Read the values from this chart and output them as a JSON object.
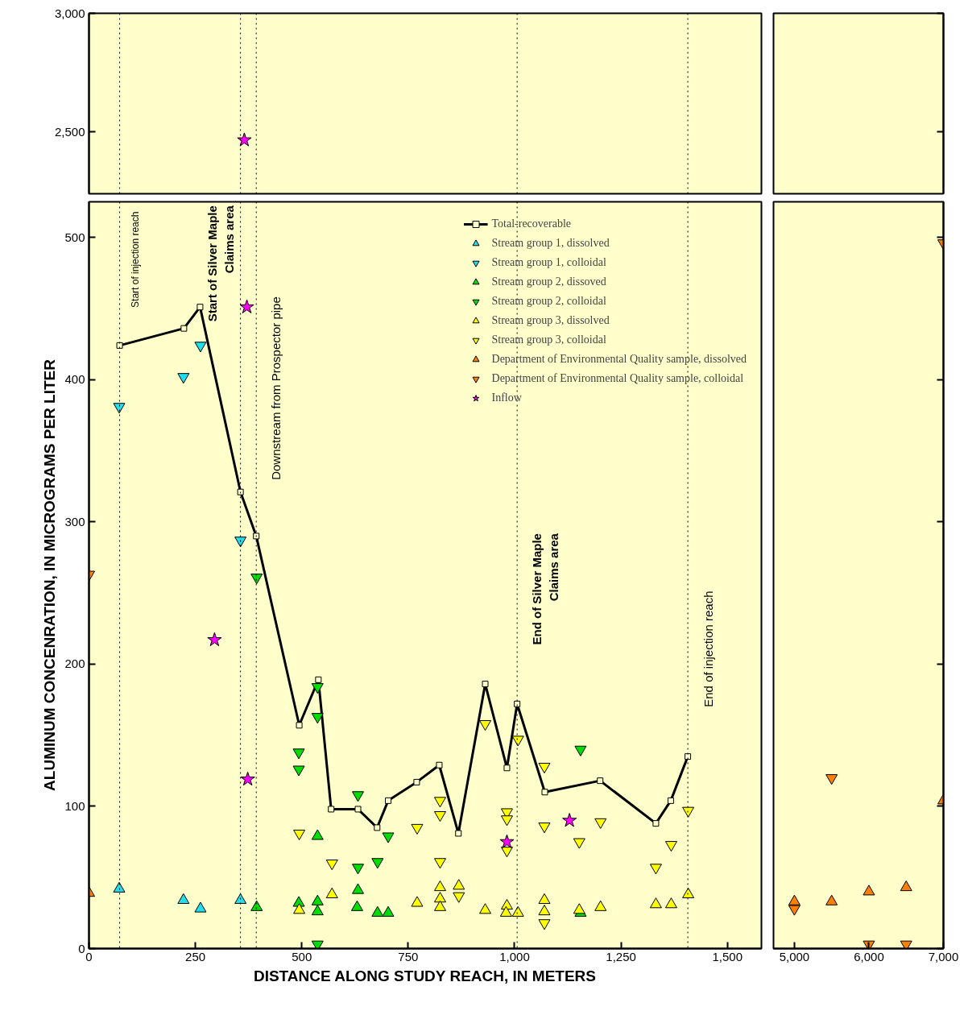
{
  "chart_data": [
    {
      "type": "scatter",
      "xlim": [
        0,
        1580
      ],
      "ylim": [
        2240,
        3000
      ],
      "yticks": [
        {
          "value": 2500,
          "label": "2,500"
        },
        {
          "value": 3000,
          "label": "3,000"
        }
      ],
      "tick_labels": "y",
      "ref_lines": [
        {
          "axis": "x",
          "value": 72,
          "line_style": "dotted",
          "color": "#000000"
        },
        {
          "axis": "x",
          "value": 356,
          "line_style": "dotted",
          "color": "#000000"
        },
        {
          "axis": "x",
          "value": 393,
          "line_style": "dotted",
          "color": "#000000"
        },
        {
          "axis": "x",
          "value": 1006,
          "line_style": "dotted",
          "color": "#000000"
        },
        {
          "axis": "x",
          "value": 1407,
          "line_style": "dotted",
          "color": "#000000"
        }
      ],
      "series": [
        {
          "marker": "star",
          "color": "#ff00ff",
          "x": [
            365
          ],
          "values": [
            2466
          ]
        }
      ]
    },
    {
      "type": "scatter",
      "xlim": [
        4720,
        7000
      ],
      "ylim": [
        2240,
        3000
      ],
      "yticks": [
        {
          "value": 2500,
          "label": null
        },
        {
          "value": 3000,
          "label": null
        }
      ],
      "tick_labels": false
    },
    {
      "type": "scatter",
      "xlim": [
        0,
        1580
      ],
      "ylim": [
        0,
        525
      ],
      "xlabel": "DISTANCE ALONG STUDY REACH, IN METERS",
      "ylabel": "ALUMINUM CONCENRATION, IN MICROGRAMS PER LITER",
      "xticks": [
        0,
        250,
        500,
        750,
        {
          "value": 1000,
          "label": "1,000"
        },
        {
          "value": 1250,
          "label": "1,250"
        },
        {
          "value": 1500,
          "label": "1,500"
        }
      ],
      "yticks": [
        0,
        100,
        200,
        300,
        400,
        500
      ],
      "legend": "top right",
      "ref_lines": [
        {
          "axis": "x",
          "value": 72,
          "label": "Start of injection reach",
          "line_style": "dotted",
          "color": "#000000"
        },
        {
          "axis": "x",
          "value": 356,
          "label": "Start of Silver Maple\nClaims area",
          "line_style": "dotted",
          "color": "#000000"
        },
        {
          "axis": "x",
          "value": 393,
          "label": "Downstream from Prospector pipe",
          "line_style": "dotted",
          "color": "#000000"
        },
        {
          "axis": "x",
          "value": 1006,
          "label": "End of Silver Maple\nClaims area",
          "line_style": "dotted",
          "color": "#000000"
        },
        {
          "axis": "x",
          "value": 1407,
          "label": "End of injection reach",
          "line_style": "dotted",
          "color": "#000000"
        }
      ],
      "series": [
        {
          "name": "Total-recoverable",
          "type": "line",
          "marker": "square",
          "line_style": "solid",
          "color": "#000000",
          "x": [
            72,
            223,
            261,
            356,
            393,
            494,
            539,
            569,
            632,
            677,
            703,
            770,
            823,
            868,
            931,
            982,
            1006,
            1071,
            1201,
            1332,
            1367,
            1407
          ],
          "values": [
            424,
            436,
            451,
            321,
            290,
            157,
            189,
            98,
            98,
            85,
            104,
            117,
            129,
            81,
            186,
            127,
            172,
            110,
            118,
            88,
            104,
            135
          ]
        },
        {
          "name": "Stream group 1, dissolved",
          "marker": "triangle",
          "color": "#22ddee",
          "x": [
            71,
            222,
            262,
            356
          ],
          "values": [
            42,
            34,
            28,
            34
          ]
        },
        {
          "name": "Stream group 1, colloidal",
          "color": "#22ddee",
          "x": [
            71,
            222,
            262,
            356
          ],
          "values": [
            381,
            402,
            424,
            287
          ]
        },
        {
          "name": "Stream group 2, dissoved",
          "marker": "triangle",
          "color": "#00dd00",
          "x": [
            394,
            493,
            537,
            537,
            537,
            632,
            630,
            678,
            703,
            1155
          ],
          "values": [
            29,
            32,
            33,
            26,
            79,
            41,
            29,
            25,
            25,
            25
          ]
        },
        {
          "name": "Stream group 2, colloidal",
          "color": "#00dd00",
          "x": [
            394,
            493,
            493,
            537,
            537,
            537,
            632,
            632,
            678,
            703,
            1155
          ],
          "values": [
            261,
            138,
            126,
            184,
            163,
            3,
            108,
            57,
            61,
            79,
            140
          ]
        },
        {
          "name": "Stream group 3, dissolved",
          "marker": "triangle",
          "color": "#ffff00",
          "x": [
            494,
            571,
            771,
            825,
            825,
            825,
            869,
            931,
            982,
            980,
            1008,
            1070,
            1070,
            1152,
            1202,
            1332,
            1368,
            1408
          ],
          "values": [
            27,
            38,
            32,
            43,
            35,
            29,
            44,
            27,
            30,
            25,
            25,
            34,
            26,
            27,
            29,
            31,
            31,
            38
          ]
        },
        {
          "name": "Stream group 3, colloidal",
          "color": "#ffff00",
          "x": [
            494,
            571,
            771,
            825,
            825,
            825,
            869,
            931,
            1008,
            982,
            982,
            982,
            1070,
            1070,
            1070,
            1152,
            1202,
            1332,
            1368,
            1408
          ],
          "values": [
            81,
            60,
            85,
            104,
            94,
            61,
            37,
            158,
            147,
            96,
            91,
            69,
            128,
            86,
            18,
            75,
            89,
            57,
            73,
            97
          ]
        },
        {
          "name": "Department of Environmental Quality sample, dissolved",
          "marker": "triangle",
          "color": "#ff8000",
          "x": [
            0
          ],
          "values": [
            39
          ]
        },
        {
          "name": "Department of Environmental Quality sample, colloidal",
          "color": "#ff8000",
          "x": [
            0
          ],
          "values": [
            263
          ]
        },
        {
          "name": "Inflow",
          "marker": "star",
          "color": "#ff00ff",
          "x": [
            295,
            373,
            371,
            982,
            1129
          ],
          "values": [
            217,
            119,
            451,
            75,
            90
          ]
        }
      ]
    },
    {
      "type": "scatter",
      "xlim": [
        4720,
        7000
      ],
      "ylim": [
        0,
        525
      ],
      "tick_labels": "x",
      "xticks": [
        {
          "value": 5000,
          "label": "5,000"
        },
        {
          "value": 6000,
          "label": "6,000"
        },
        {
          "value": 7000,
          "label": "7,000"
        }
      ],
      "yticks": [
        {
          "value": 0,
          "label": null
        },
        {
          "value": 100,
          "label": null
        },
        {
          "value": 200,
          "label": null
        },
        {
          "value": 300,
          "label": null
        },
        {
          "value": 400,
          "label": null
        },
        {
          "value": 500,
          "label": null
        }
      ],
      "series": [
        {
          "marker": "triangle",
          "color": "#ff8000",
          "x": [
            5000,
            5500,
            6000,
            6500,
            7000
          ],
          "values": [
            33,
            33,
            40,
            43,
            104
          ]
        },
        {
          "color": "#ff8000",
          "x": [
            5000,
            5500,
            6000,
            6500,
            7000
          ],
          "values": [
            28,
            120,
            3,
            3,
            496
          ]
        }
      ]
    }
  ]
}
